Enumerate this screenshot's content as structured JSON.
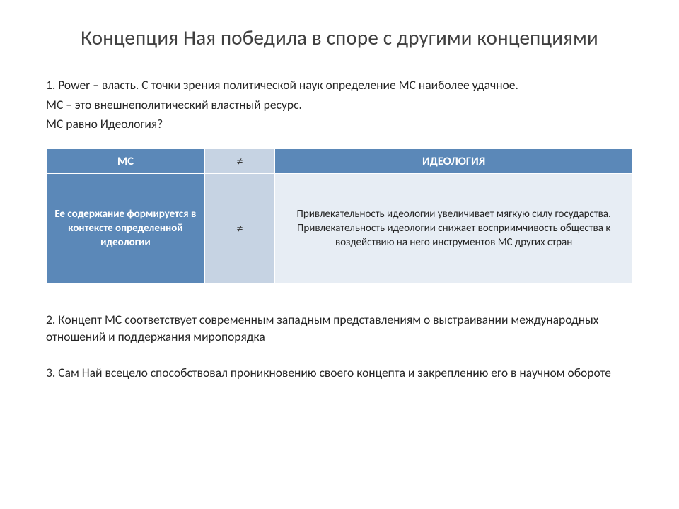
{
  "title": "Концепция Ная победила в споре с другими концепциями",
  "p1a": "1. Power – власть. С точки зрения политической наук определение МС наиболее удачное.",
  "p1b": "МС – это внешнеполитический властный ресурс.",
  "p1c": "МС равно Идеология?",
  "table": {
    "header": {
      "left": "МС",
      "mid": "≠",
      "right": "ИДЕОЛОГИЯ",
      "bg_main": "#5b88b8",
      "bg_mid": "#c6d3e3",
      "text_main": "#ffffff"
    },
    "row": {
      "left": "Ее содержание формируется в контексте определенной идеологии",
      "mid": "≠",
      "right": "Привлекательность идеологии увеличивает мягкую силу государства.\nПривлекательность идеологии снижает восприимчивость общества к воздействию на него инструментов МС других стран",
      "bg_left": "#5b88b8",
      "bg_mid": "#c6d3e3",
      "bg_right": "#e7edf4"
    },
    "col_widths_pct": [
      27,
      12,
      61
    ],
    "border_color": "#ffffff"
  },
  "p2": "2. Концепт МС соответствует современным западным представлениям о выстраивании международных отношений и поддержания миропорядка",
  "p3": "3. Сам Най всецело способствовал проникновению своего концепта и закреплению его в научном обороте",
  "colors": {
    "title": "#404040",
    "body_text": "#262626",
    "background": "#ffffff"
  },
  "fonts": {
    "family": "Calibri",
    "title_size_pt": 22,
    "body_size_pt": 13,
    "table_header_size_pt": 12,
    "table_body_size_pt": 11
  }
}
